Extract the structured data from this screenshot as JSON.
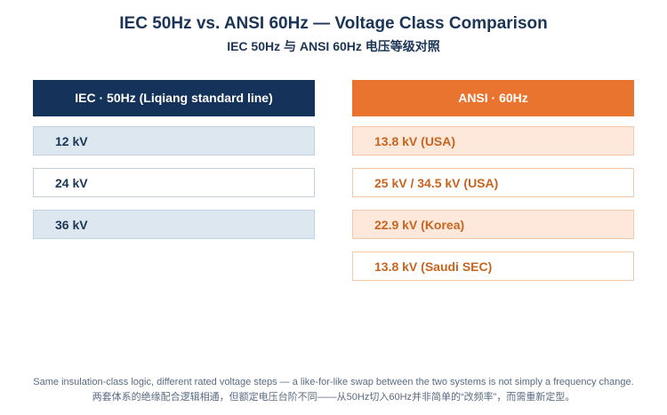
{
  "header": {
    "title": "IEC 50Hz vs. ANSI 60Hz — Voltage Class Comparison",
    "subtitle": "IEC 50Hz 与 ANSI 60Hz 电压等级对照"
  },
  "columns": [
    {
      "heading": "IEC · 50Hz  (Liqiang standard line)",
      "rows": [
        "12 kV",
        "24 kV",
        "36 kV"
      ]
    },
    {
      "heading": "ANSI · 60Hz",
      "rows": [
        "13.8 kV (USA)",
        "25 kV / 34.5 kV (USA)",
        "22.9 kV (Korea)",
        "13.8 kV (Saudi SEC)"
      ]
    }
  ],
  "footer": [
    "Same insulation-class logic, different rated voltage steps — a like-for-like swap between the two systems is not simply a frequency change.",
    "两套体系的绝缘配合逻辑相通，但额定电压台阶不同——从50Hz切入60Hz并非简单的“改频率”，而需重新定型。"
  ]
}
